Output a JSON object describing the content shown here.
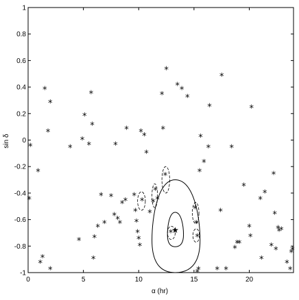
{
  "chart_data": {
    "type": "scatter",
    "xlabel": "α (hr)",
    "ylabel": "sin δ",
    "xlim": [
      0,
      24
    ],
    "ylim": [
      -1,
      1
    ],
    "x_ticks": [
      0,
      5,
      10,
      15,
      20
    ],
    "y_ticks": [
      -1,
      -0.8,
      -0.6,
      -0.4,
      -0.2,
      0,
      0.2,
      0.4,
      0.6,
      0.8,
      1
    ],
    "x_tick_labels": [
      "0",
      "5",
      "10",
      "15",
      "20"
    ],
    "y_tick_labels": [
      "-1",
      "-0.8",
      "-0.6",
      "-0.4",
      "-0.2",
      "0",
      "0.2",
      "0.4",
      "0.6",
      "0.8",
      "1"
    ],
    "grid": false,
    "points": [
      {
        "x": 0.1,
        "y": -0.45
      },
      {
        "x": 0.2,
        "y": -0.05
      },
      {
        "x": 0.9,
        "y": -0.24
      },
      {
        "x": 1.1,
        "y": -0.93
      },
      {
        "x": 1.3,
        "y": -0.89
      },
      {
        "x": 1.5,
        "y": 0.38
      },
      {
        "x": 1.8,
        "y": 0.06
      },
      {
        "x": 2.0,
        "y": 0.28
      },
      {
        "x": 2.0,
        "y": -0.98
      },
      {
        "x": 3.8,
        "y": -0.06
      },
      {
        "x": 4.6,
        "y": -0.76
      },
      {
        "x": 4.9,
        "y": 0.0
      },
      {
        "x": 5.1,
        "y": 0.18
      },
      {
        "x": 5.5,
        "y": -0.04
      },
      {
        "x": 5.7,
        "y": 0.35
      },
      {
        "x": 5.8,
        "y": 0.11
      },
      {
        "x": 5.9,
        "y": -0.9
      },
      {
        "x": 6.0,
        "y": -0.74
      },
      {
        "x": 6.3,
        "y": -0.66
      },
      {
        "x": 6.6,
        "y": -0.42
      },
      {
        "x": 6.9,
        "y": -0.63
      },
      {
        "x": 7.5,
        "y": -0.43
      },
      {
        "x": 7.8,
        "y": -0.57
      },
      {
        "x": 7.9,
        "y": -0.04
      },
      {
        "x": 8.1,
        "y": -0.6
      },
      {
        "x": 8.3,
        "y": -0.63
      },
      {
        "x": 8.5,
        "y": -0.48
      },
      {
        "x": 8.8,
        "y": -0.46
      },
      {
        "x": 8.9,
        "y": 0.08
      },
      {
        "x": 9.6,
        "y": -0.42
      },
      {
        "x": 9.7,
        "y": -0.54
      },
      {
        "x": 9.8,
        "y": -0.62
      },
      {
        "x": 9.9,
        "y": -0.7
      },
      {
        "x": 10.0,
        "y": -0.75
      },
      {
        "x": 10.1,
        "y": -0.8
      },
      {
        "x": 10.2,
        "y": 0.06
      },
      {
        "x": 10.3,
        "y": -0.46
      },
      {
        "x": 10.5,
        "y": 0.03
      },
      {
        "x": 10.7,
        "y": -0.1
      },
      {
        "x": 11.0,
        "y": -0.55
      },
      {
        "x": 11.3,
        "y": -0.47
      },
      {
        "x": 11.5,
        "y": -0.38
      },
      {
        "x": 11.7,
        "y": -0.45
      },
      {
        "x": 12.1,
        "y": 0.34
      },
      {
        "x": 12.2,
        "y": 0.08
      },
      {
        "x": 12.4,
        "y": -0.27
      },
      {
        "x": 12.5,
        "y": 0.53
      },
      {
        "x": 12.9,
        "y": -0.7
      },
      {
        "x": 13.5,
        "y": 0.41
      },
      {
        "x": 13.9,
        "y": 0.38
      },
      {
        "x": 14.4,
        "y": 0.32
      },
      {
        "x": 15.1,
        "y": -0.52
      },
      {
        "x": 15.2,
        "y": -0.63
      },
      {
        "x": 15.3,
        "y": -0.73
      },
      {
        "x": 15.3,
        "y": -1.0
      },
      {
        "x": 15.4,
        "y": -0.98
      },
      {
        "x": 15.5,
        "y": -0.24
      },
      {
        "x": 15.6,
        "y": 0.02
      },
      {
        "x": 15.9,
        "y": -0.17
      },
      {
        "x": 16.3,
        "y": -0.06
      },
      {
        "x": 16.4,
        "y": 0.25
      },
      {
        "x": 17.1,
        "y": -0.98
      },
      {
        "x": 17.4,
        "y": -0.54
      },
      {
        "x": 17.5,
        "y": 0.48
      },
      {
        "x": 17.9,
        "y": -0.98
      },
      {
        "x": 18.4,
        "y": -0.06
      },
      {
        "x": 18.7,
        "y": -0.82
      },
      {
        "x": 18.9,
        "y": -0.78
      },
      {
        "x": 19.1,
        "y": -0.78
      },
      {
        "x": 19.5,
        "y": -0.35
      },
      {
        "x": 20.0,
        "y": -0.66
      },
      {
        "x": 20.1,
        "y": -0.73
      },
      {
        "x": 20.2,
        "y": 0.24
      },
      {
        "x": 21.0,
        "y": -0.45
      },
      {
        "x": 21.1,
        "y": -0.9
      },
      {
        "x": 21.4,
        "y": -0.4
      },
      {
        "x": 22.0,
        "y": -0.8
      },
      {
        "x": 22.2,
        "y": -0.26
      },
      {
        "x": 22.3,
        "y": -0.56
      },
      {
        "x": 22.4,
        "y": -0.83
      },
      {
        "x": 22.6,
        "y": -0.67
      },
      {
        "x": 22.7,
        "y": -0.69
      },
      {
        "x": 22.9,
        "y": -0.68
      },
      {
        "x": 23.4,
        "y": -0.93
      },
      {
        "x": 23.7,
        "y": -0.98
      },
      {
        "x": 23.8,
        "y": -0.85
      },
      {
        "x": 23.9,
        "y": -0.83
      }
    ],
    "best_fit": {
      "x": 13.3,
      "y": -0.68
    },
    "contours_solid": [
      {
        "cx": 13.3,
        "cy": -0.675,
        "rx_left": 0.7,
        "rx_right": 0.75,
        "ry_top": 0.13,
        "ry_bottom": 0.13
      },
      {
        "cx": 13.3,
        "cy": -0.65,
        "rx_left": 2.1,
        "rx_right": 2.25,
        "ry_top": 0.35,
        "ry_bottom": 0.35
      }
    ],
    "contours_dashed": [
      {
        "cx": 12.95,
        "cy": -0.7,
        "rx": 0.35,
        "ry": 0.05
      },
      {
        "cx": 10.25,
        "cy": -0.46,
        "rx": 0.35,
        "ry": 0.07
      },
      {
        "cx": 11.45,
        "cy": -0.42,
        "rx": 0.25,
        "ry": 0.09
      },
      {
        "cx": 12.45,
        "cy": -0.3,
        "rx": 0.35,
        "ry": 0.1
      },
      {
        "cx": 15.15,
        "cy": -0.55,
        "rx": 0.3,
        "ry": 0.08
      },
      {
        "cx": 15.2,
        "cy": -0.72,
        "rx": 0.3,
        "ry": 0.05
      }
    ]
  }
}
